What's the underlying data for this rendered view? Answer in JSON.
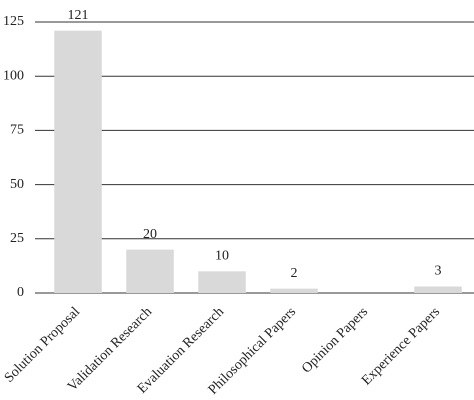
{
  "chart_data": {
    "type": "bar",
    "categories": [
      "Solution Proposal",
      "Validation Research",
      "Evaluation Research",
      "Philosophical Papers",
      "Opinion Papers",
      "Experience Papers"
    ],
    "values": [
      121,
      20,
      10,
      2,
      0,
      3
    ],
    "color": "#d9d9d9",
    "ylim": [
      0,
      125
    ],
    "yticks": [
      0,
      25,
      50,
      75,
      100,
      125
    ],
    "grid": true
  }
}
